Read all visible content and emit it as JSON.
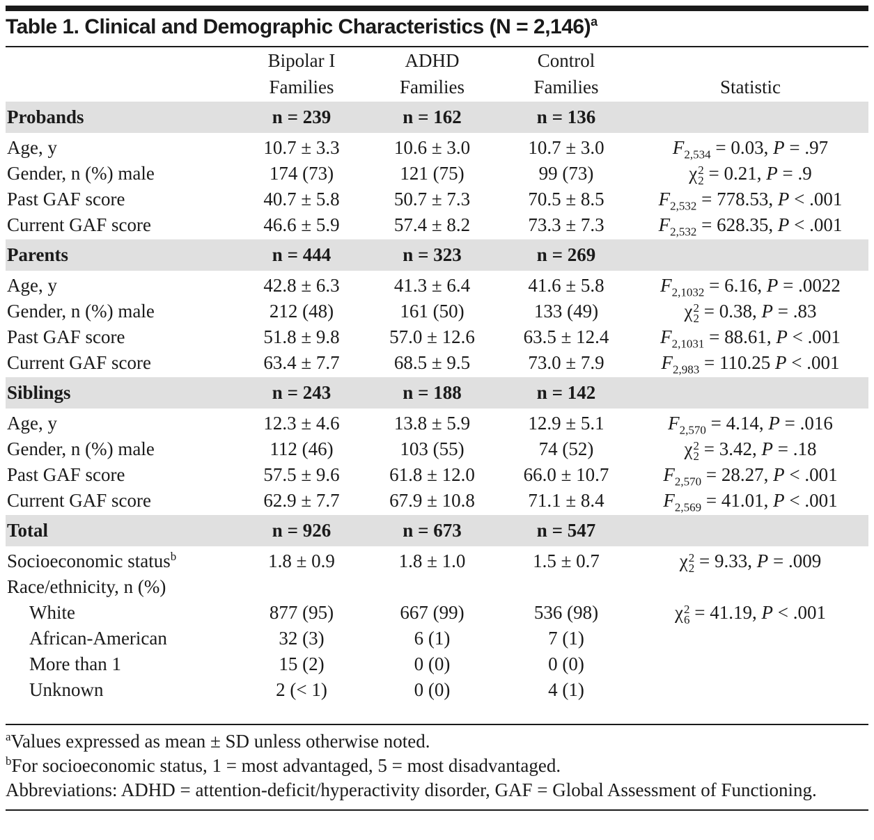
{
  "title": "Table 1. Clinical and Demographic Characteristics (N = 2,146)",
  "title_mark": "a",
  "columns": [
    {
      "line1": "Bipolar I",
      "line2": "Families"
    },
    {
      "line1": "ADHD",
      "line2": "Families"
    },
    {
      "line1": "Control",
      "line2": "Families"
    },
    {
      "line2": "Statistic"
    }
  ],
  "sections": [
    {
      "label": "Probands",
      "n": [
        "n = 239",
        "n = 162",
        "n = 136"
      ],
      "rows": [
        {
          "label": "Age, y",
          "values": [
            "10.7 ± 3.3",
            "10.6 ± 3.0",
            "10.7 ± 3.0"
          ],
          "statistic": {
            "symbol": "F",
            "sub": "2,534",
            "test_value": "= 0.03,",
            "p_symbol": "P",
            "p_value": "= .97"
          }
        },
        {
          "label": "Gender, n (%) male",
          "values": [
            "174 (73)",
            "121 (75)",
            "99 (73)"
          ],
          "statistic": {
            "symbol": "χ",
            "sup": "2",
            "sub": "2",
            "test_value": "= 0.21,",
            "p_symbol": "P",
            "p_value": "= .9"
          }
        },
        {
          "label": "Past GAF score",
          "values": [
            "40.7 ± 5.8",
            "50.7 ± 7.3",
            "70.5 ± 8.5"
          ],
          "statistic": {
            "symbol": "F",
            "sub": "2,532",
            "test_value": "= 778.53,",
            "p_symbol": "P",
            "p_value": "< .001"
          }
        },
        {
          "label": "Current GAF score",
          "values": [
            "46.6 ± 5.9",
            "57.4 ± 8.2",
            "73.3 ± 7.3"
          ],
          "statistic": {
            "symbol": "F",
            "sub": "2,532",
            "test_value": "= 628.35,",
            "p_symbol": "P",
            "p_value": "< .001"
          }
        }
      ]
    },
    {
      "label": "Parents",
      "n": [
        "n = 444",
        "n = 323",
        "n = 269"
      ],
      "rows": [
        {
          "label": "Age, y",
          "values": [
            "42.8 ± 6.3",
            "41.3 ± 6.4",
            "41.6 ± 5.8"
          ],
          "statistic": {
            "symbol": "F",
            "sub": "2,1032",
            "test_value": "= 6.16,",
            "p_symbol": "P",
            "p_value": "= .0022"
          }
        },
        {
          "label": "Gender, n (%) male",
          "values": [
            "212 (48)",
            "161 (50)",
            "133 (49)"
          ],
          "statistic": {
            "symbol": "χ",
            "sup": "2",
            "sub": "2",
            "test_value": "= 0.38,",
            "p_symbol": "P",
            "p_value": "= .83"
          }
        },
        {
          "label": "Past GAF score",
          "values": [
            "51.8 ± 9.8",
            "57.0 ± 12.6",
            "63.5 ± 12.4"
          ],
          "statistic": {
            "symbol": "F",
            "sub": "2,1031",
            "test_value": "= 88.61,",
            "p_symbol": "P",
            "p_value": "< .001"
          }
        },
        {
          "label": "Current GAF score",
          "values": [
            "63.4 ± 7.7",
            "68.5 ± 9.5",
            "73.0 ± 7.9"
          ],
          "statistic": {
            "symbol": "F",
            "sub": "2,983",
            "test_value": "= 110.25",
            "p_symbol": "P",
            "p_value": "< .001"
          }
        }
      ]
    },
    {
      "label": "Siblings",
      "n": [
        "n = 243",
        "n = 188",
        "n = 142"
      ],
      "rows": [
        {
          "label": "Age, y",
          "values": [
            "12.3 ± 4.6",
            "13.8 ± 5.9",
            "12.9 ± 5.1"
          ],
          "statistic": {
            "symbol": "F",
            "sub": "2,570",
            "test_value": "= 4.14,",
            "p_symbol": "P",
            "p_value": "= .016"
          }
        },
        {
          "label": "Gender, n (%) male",
          "values": [
            "112 (46)",
            "103 (55)",
            "74 (52)"
          ],
          "statistic": {
            "symbol": "χ",
            "sup": "2",
            "sub": "2",
            "test_value": "= 3.42,",
            "p_symbol": "P",
            "p_value": "= .18"
          }
        },
        {
          "label": "Past GAF score",
          "values": [
            "57.5 ± 9.6",
            "61.8 ± 12.0",
            "66.0 ± 10.7"
          ],
          "statistic": {
            "symbol": "F",
            "sub": "2,570",
            "test_value": "= 28.27,",
            "p_symbol": "P",
            "p_value": "< .001"
          }
        },
        {
          "label": "Current GAF score",
          "values": [
            "62.9 ± 7.7",
            "67.9 ± 10.8",
            "71.1 ± 8.4"
          ],
          "statistic": {
            "symbol": "F",
            "sub": "2,569",
            "test_value": "= 41.01,",
            "p_symbol": "P",
            "p_value": "< .001"
          }
        }
      ]
    },
    {
      "label": "Total",
      "n": [
        "n = 926",
        "n = 673",
        "n = 547"
      ],
      "rows": [
        {
          "label": "Socioeconomic status",
          "label_mark": "b",
          "values": [
            "1.8 ± 0.9",
            "1.8 ± 1.0",
            "1.5 ± 0.7"
          ],
          "statistic": {
            "symbol": "χ",
            "sup": "2",
            "sub": "2",
            "test_value": "= 9.33,",
            "p_symbol": "P",
            "p_value": "= .009"
          }
        },
        {
          "label": "Race/ethnicity, n (%)",
          "subrows": [
            {
              "label": "White",
              "values": [
                "877 (95)",
                "667 (99)",
                "536 (98)"
              ],
              "statistic": {
                "symbol": "χ",
                "sup": "2",
                "sub": "6",
                "test_value": "= 41.19,",
                "p_symbol": "P",
                "p_value": "< .001"
              }
            },
            {
              "label": "African-American",
              "values": [
                "32 (3)",
                "6 (1)",
                "7 (1)"
              ]
            },
            {
              "label": "More than 1",
              "values": [
                "15 (2)",
                "0 (0)",
                "0 (0)"
              ]
            },
            {
              "label": "Unknown",
              "values": [
                "2 (< 1)",
                "0 (0)",
                "4 (1)"
              ]
            }
          ]
        }
      ]
    }
  ],
  "footnotes": [
    {
      "mark": "a",
      "text": "Values expressed as mean ± SD unless otherwise noted."
    },
    {
      "mark": "b",
      "text": "For socioeconomic status, 1 = most advantaged, 5 = most disadvantaged."
    },
    {
      "text": "Abbreviations: ADHD = attention-deficit/hyperactivity disorder, GAF = Global Assessment of Functioning."
    }
  ]
}
